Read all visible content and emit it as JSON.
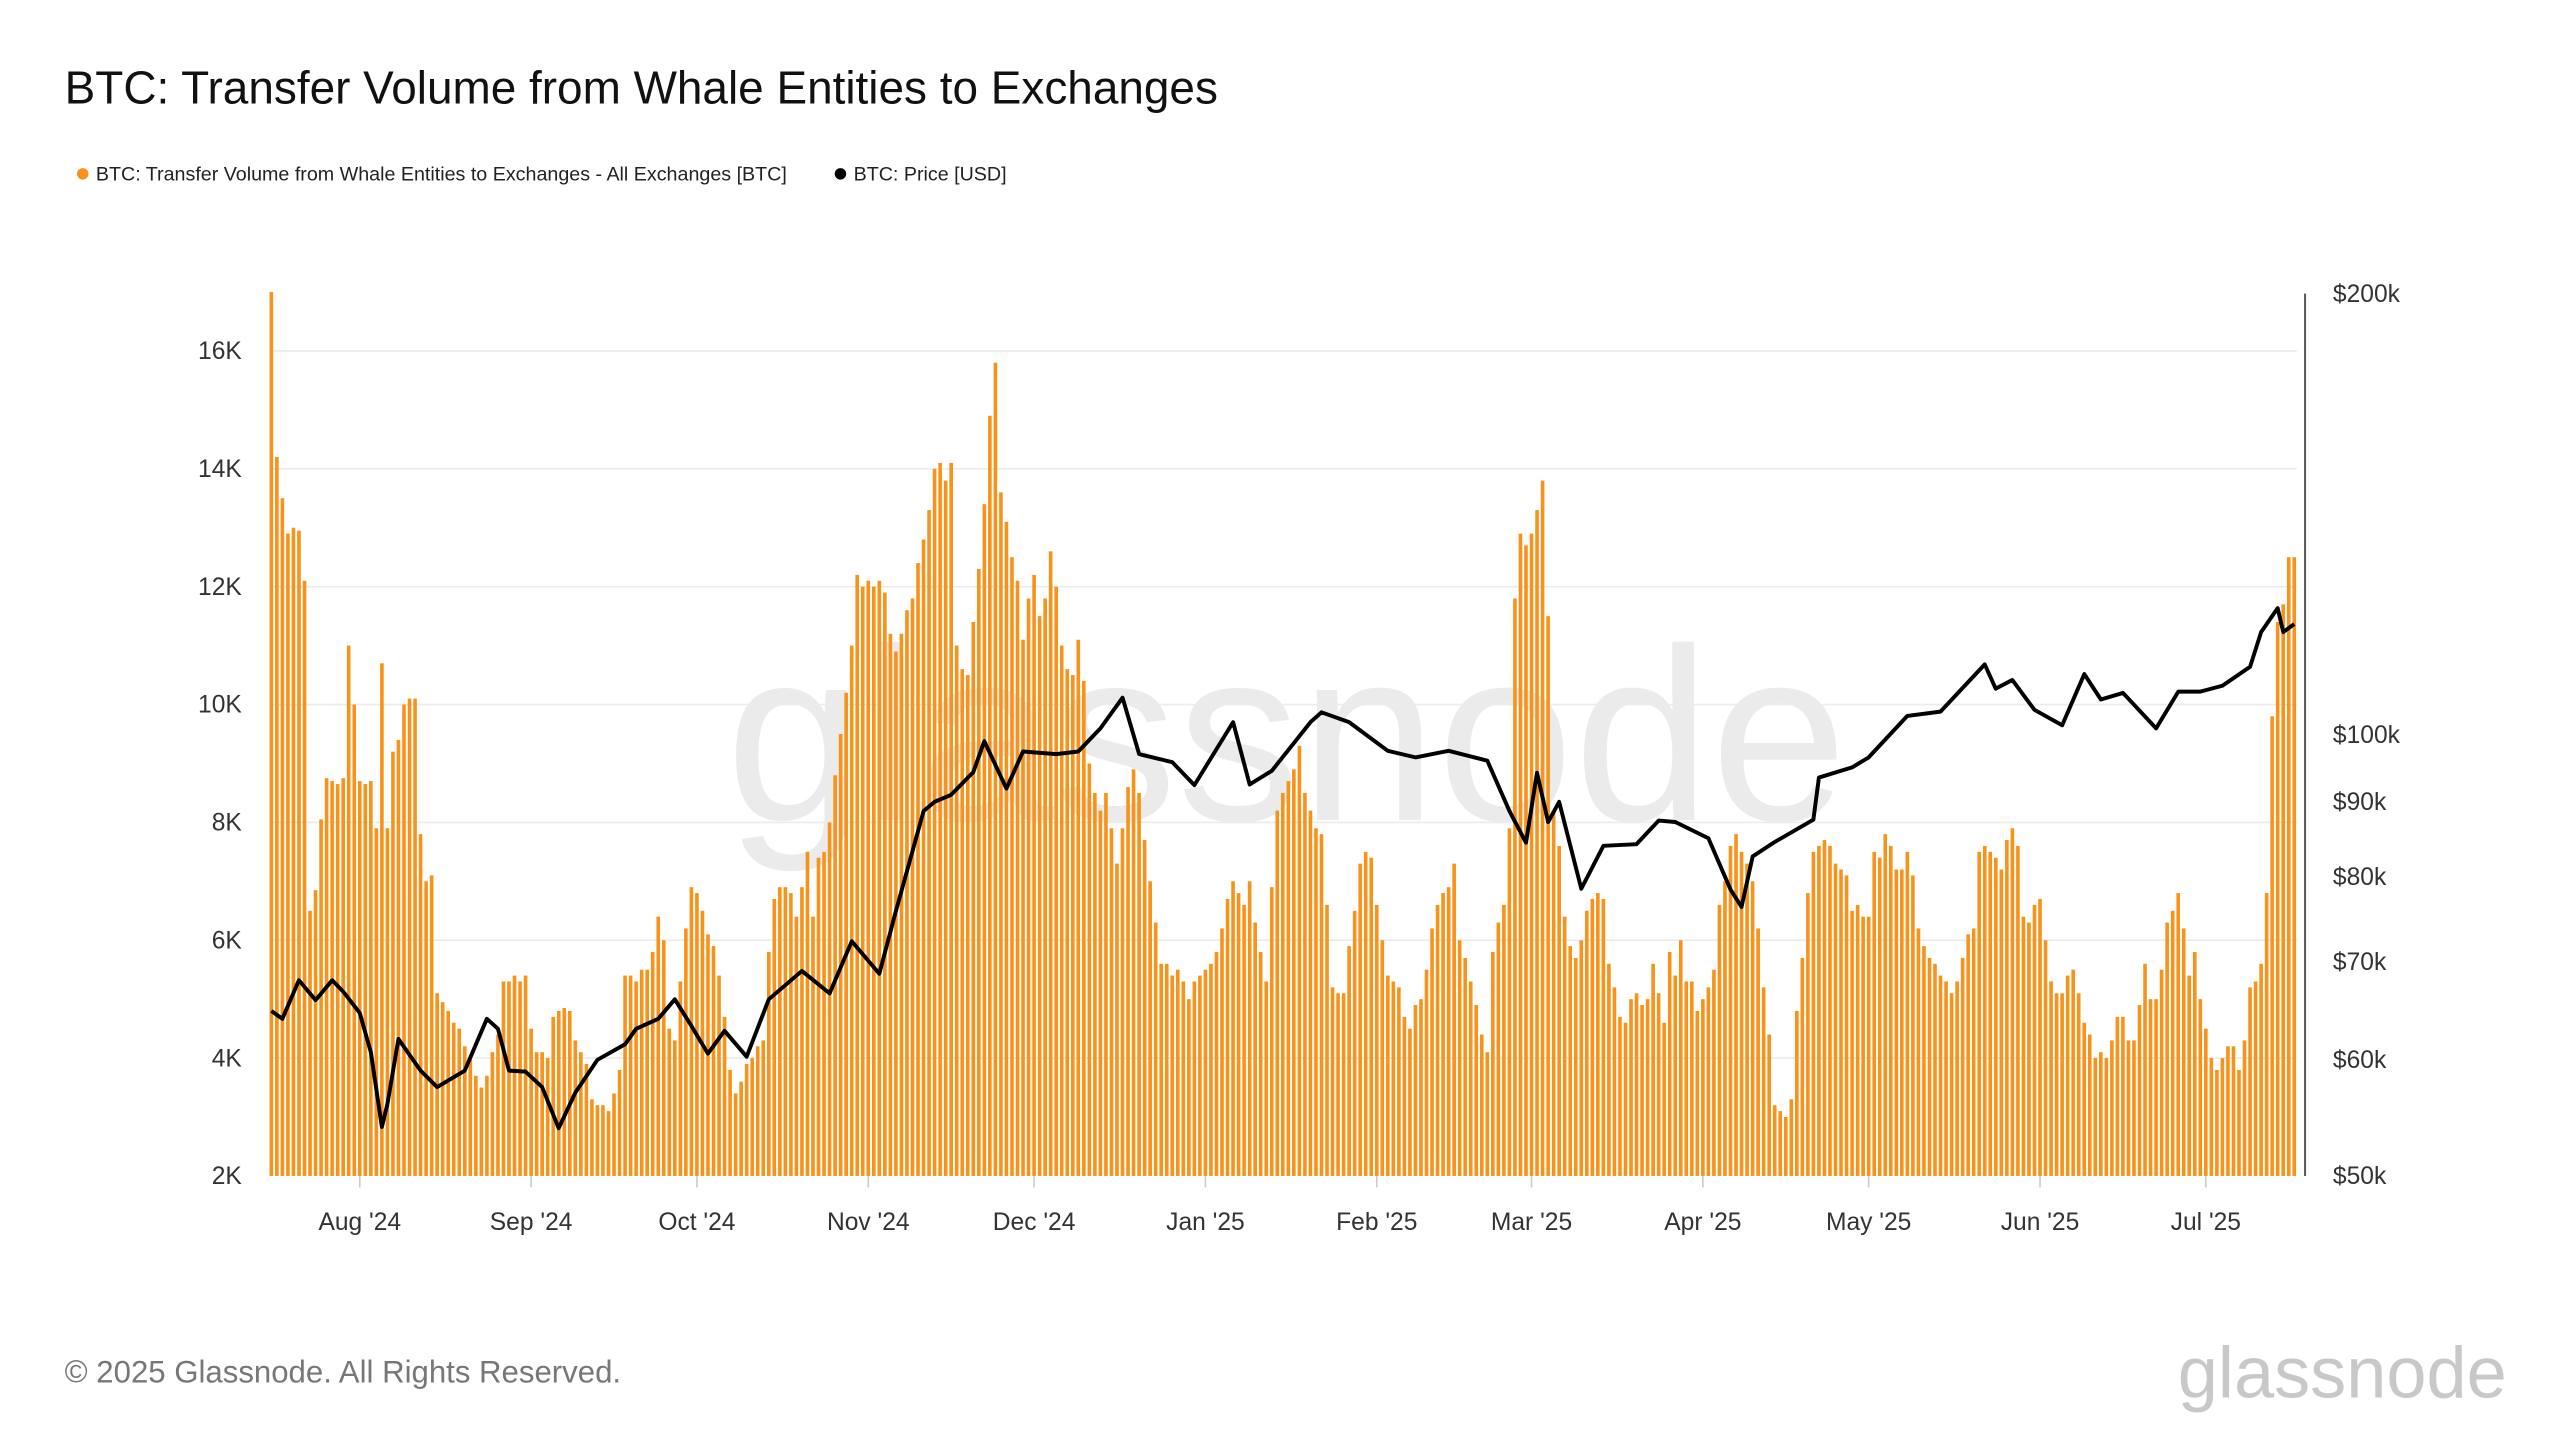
{
  "title": "BTC: Transfer Volume from Whale Entities to Exchanges",
  "legend": [
    {
      "label": "BTC: Transfer Volume from Whale Entities to Exchanges - All Exchanges [BTC]",
      "color": "#f7931a"
    },
    {
      "label": "BTC: Price [USD]",
      "color": "#000000"
    }
  ],
  "footer": {
    "copyright": "© 2025 Glassnode. All Rights Reserved.",
    "logo": "glassnode",
    "watermark": "glassnode"
  },
  "chart_data": {
    "type": "bar+line",
    "title": "BTC: Transfer Volume from Whale Entities to Exchanges",
    "left_axis": {
      "ticks": [
        "2K",
        "4K",
        "6K",
        "8K",
        "10K",
        "12K",
        "14K",
        "16K"
      ],
      "tick_values": [
        2000,
        4000,
        6000,
        8000,
        10000,
        12000,
        14000,
        16000
      ],
      "range": [
        2000,
        17000
      ],
      "scale": "linear"
    },
    "right_axis": {
      "ticks": [
        "$50k",
        "$60k",
        "$70k",
        "$80k",
        "$90k",
        "$100k",
        "$200k"
      ],
      "tick_values": [
        50000,
        60000,
        70000,
        80000,
        90000,
        100000,
        200000
      ],
      "range": [
        50000,
        200000
      ],
      "scale": "log"
    },
    "x_axis": {
      "ticks": [
        "Aug '24",
        "Sep '24",
        "Oct '24",
        "Nov '24",
        "Dec '24",
        "Jan '25",
        "Feb '25",
        "Mar '25",
        "Apr '25",
        "May '25",
        "Jun '25",
        "Jul '25"
      ],
      "tick_dates": [
        "2024-08-01",
        "2024-09-01",
        "2024-10-01",
        "2024-11-01",
        "2024-12-01",
        "2025-01-01",
        "2025-02-01",
        "2025-03-01",
        "2025-04-01",
        "2025-05-01",
        "2025-06-01",
        "2025-07-01"
      ]
    },
    "grid": true,
    "legend_position": "top-left",
    "series": [
      {
        "name": "BTC: Transfer Volume from Whale Entities to Exchanges - All Exchanges [BTC]",
        "type": "bar",
        "axis": "left",
        "color": "#f7931a",
        "daily_by_month": [
          {
            "month": "2024-07",
            "first_day": 16,
            "values": [
              17000,
              14200,
              13500,
              12900,
              13000,
              12950,
              12100,
              6500,
              6850,
              8050,
              8750,
              8700,
              8650,
              8750,
              11000,
              10000
            ]
          },
          {
            "month": "2024-08",
            "first_day": 1,
            "values": [
              8700,
              8650,
              8700,
              7900,
              10700,
              7900,
              9200,
              9400,
              10000,
              10100,
              10100,
              7800,
              7000,
              7100,
              5100,
              4950,
              4800,
              4600,
              4500,
              4200,
              4000,
              3700,
              3500,
              3700,
              4100,
              4400,
              5300,
              5300,
              5400,
              5300,
              5400
            ]
          },
          {
            "month": "2024-09",
            "first_day": 1,
            "values": [
              4500,
              4100,
              4100,
              4000,
              4700,
              4800,
              4850,
              4800,
              4300,
              4100,
              3900,
              3300,
              3200,
              3200,
              3100,
              3400,
              3800,
              5400,
              5400,
              5300,
              5500,
              5500,
              5800,
              6400,
              6000,
              4500,
              4300,
              5300,
              6200,
              6900
            ]
          },
          {
            "month": "2024-10",
            "first_day": 1,
            "values": [
              6800,
              6500,
              6100,
              5900,
              5400,
              4700,
              3800,
              3400,
              3600,
              3900,
              4000,
              4200,
              4300,
              5800,
              6700,
              6900,
              6900,
              6800,
              6400,
              6900,
              7500,
              6400,
              7400,
              7500,
              8000,
              8800,
              9500,
              10200,
              11000,
              12200,
              12000
            ]
          },
          {
            "month": "2024-11",
            "first_day": 1,
            "values": [
              12100,
              12000,
              12100,
              11900,
              11200,
              10900,
              11200,
              11600,
              11800,
              12400,
              12800,
              13300,
              14000,
              14100,
              13800,
              14100,
              11000,
              10600,
              10500,
              11400,
              12300,
              13400,
              14900,
              15800,
              13600,
              13100,
              12500,
              12100,
              11100,
              11800
            ]
          },
          {
            "month": "2024-12",
            "first_day": 1,
            "values": [
              12200,
              11500,
              11800,
              12600,
              12000,
              11000,
              10600,
              10500,
              11100,
              10400,
              9000,
              8500,
              8200,
              8500,
              7900,
              7300,
              7900,
              8600,
              8900,
              8500,
              7700,
              7000,
              6300,
              5600,
              5600,
              5400,
              5500,
              5300,
              5000,
              5300,
              5400
            ]
          },
          {
            "month": "2025-01",
            "first_day": 1,
            "values": [
              5500,
              5600,
              5800,
              6200,
              6700,
              7000,
              6800,
              6600,
              7000,
              6300,
              5800,
              5300,
              6900,
              8200,
              8500,
              8700,
              8900,
              9300,
              8500,
              8200,
              7900,
              7800,
              6600,
              5200,
              5100,
              5100,
              5900,
              6500,
              7300,
              7500,
              7400
            ]
          },
          {
            "month": "2025-02",
            "first_day": 1,
            "values": [
              6600,
              6000,
              5400,
              5300,
              5200,
              4700,
              4500,
              4900,
              5000,
              5500,
              6200,
              6600,
              6800,
              6900,
              7300,
              6000,
              5700,
              5300,
              4900,
              4400,
              4100,
              5800,
              6300,
              6600,
              7900,
              11800,
              12900,
              12700
            ]
          },
          {
            "month": "2025-03",
            "first_day": 1,
            "values": [
              12900,
              13300,
              13800,
              11500,
              8200,
              7600,
              6400,
              5900,
              5700,
              6000,
              6500,
              6700,
              6800,
              6700,
              5600,
              5200,
              4700,
              4600,
              5000,
              5100,
              4900,
              5000,
              5600,
              5100,
              4600,
              5800,
              5400,
              6000,
              5300,
              5300,
              4800
            ]
          },
          {
            "month": "2025-04",
            "first_day": 1,
            "values": [
              5000,
              5200,
              5500,
              6600,
              7000,
              7600,
              7800,
              7500,
              7300,
              7000,
              6200,
              5200,
              4400,
              3200,
              3100,
              3000,
              3300,
              4800,
              5700,
              6800,
              7500,
              7600,
              7700,
              7600,
              7300,
              7200,
              7100,
              6500,
              6600,
              6400
            ]
          },
          {
            "month": "2025-05",
            "first_day": 1,
            "values": [
              6400,
              7500,
              7400,
              7800,
              7600,
              7200,
              7200,
              7500,
              7100,
              6200,
              5900,
              5700,
              5600,
              5400,
              5300,
              5100,
              5300,
              5700,
              6100,
              6200,
              7500,
              7600,
              7500,
              7400,
              7200,
              7700,
              7900,
              7600,
              6400,
              6300,
              6600
            ]
          },
          {
            "month": "2025-06",
            "first_day": 1,
            "values": [
              6700,
              6000,
              5300,
              5100,
              5100,
              5400,
              5500,
              5100,
              4600,
              4400,
              4000,
              4100,
              4000,
              4300,
              4700,
              4700,
              4300,
              4300,
              4900,
              5600,
              5000,
              5000,
              5500,
              6300,
              6500,
              6800,
              6200,
              5400,
              5800,
              5000
            ]
          },
          {
            "month": "2025-07",
            "first_day": 1,
            "values": [
              4500,
              4000,
              3800,
              4000,
              4200,
              4200,
              3800,
              4300,
              5200,
              5300,
              5600,
              6800,
              9800,
              11400,
              11700,
              12500,
              12500
            ]
          }
        ]
      },
      {
        "name": "BTC: Price [USD]",
        "type": "line",
        "axis": "right",
        "color": "#000000",
        "points": [
          [
            "2024-07-16",
            64800
          ],
          [
            "2024-07-18",
            64000
          ],
          [
            "2024-07-21",
            68000
          ],
          [
            "2024-07-24",
            65900
          ],
          [
            "2024-07-27",
            68000
          ],
          [
            "2024-07-29",
            66800
          ],
          [
            "2024-08-01",
            64600
          ],
          [
            "2024-08-03",
            60700
          ],
          [
            "2024-08-05",
            54000
          ],
          [
            "2024-08-06",
            56000
          ],
          [
            "2024-08-08",
            62000
          ],
          [
            "2024-08-12",
            59000
          ],
          [
            "2024-08-15",
            57500
          ],
          [
            "2024-08-20",
            59000
          ],
          [
            "2024-08-24",
            64000
          ],
          [
            "2024-08-26",
            63000
          ],
          [
            "2024-08-28",
            59000
          ],
          [
            "2024-08-31",
            58900
          ],
          [
            "2024-09-03",
            57500
          ],
          [
            "2024-09-06",
            53900
          ],
          [
            "2024-09-09",
            57000
          ],
          [
            "2024-09-13",
            60000
          ],
          [
            "2024-09-18",
            61500
          ],
          [
            "2024-09-20",
            63000
          ],
          [
            "2024-09-24",
            64000
          ],
          [
            "2024-09-27",
            66000
          ],
          [
            "2024-09-30",
            63300
          ],
          [
            "2024-10-03",
            60600
          ],
          [
            "2024-10-06",
            62800
          ],
          [
            "2024-10-10",
            60300
          ],
          [
            "2024-10-14",
            66000
          ],
          [
            "2024-10-20",
            69000
          ],
          [
            "2024-10-25",
            66600
          ],
          [
            "2024-10-29",
            72300
          ],
          [
            "2024-11-03",
            68700
          ],
          [
            "2024-11-06",
            75800
          ],
          [
            "2024-11-11",
            88700
          ],
          [
            "2024-11-13",
            90000
          ],
          [
            "2024-11-16",
            91000
          ],
          [
            "2024-11-20",
            94300
          ],
          [
            "2024-11-22",
            99000
          ],
          [
            "2024-11-26",
            91900
          ],
          [
            "2024-11-29",
            97400
          ],
          [
            "2024-12-05",
            97000
          ],
          [
            "2024-12-09",
            97400
          ],
          [
            "2024-12-13",
            101000
          ],
          [
            "2024-12-17",
            106000
          ],
          [
            "2024-12-20",
            97000
          ],
          [
            "2024-12-26",
            95800
          ],
          [
            "2024-12-30",
            92400
          ],
          [
            "2025-01-06",
            102000
          ],
          [
            "2025-01-09",
            92500
          ],
          [
            "2025-01-13",
            94500
          ],
          [
            "2025-01-20",
            102000
          ],
          [
            "2025-01-22",
            103600
          ],
          [
            "2025-01-27",
            102000
          ],
          [
            "2025-02-03",
            97500
          ],
          [
            "2025-02-08",
            96500
          ],
          [
            "2025-02-14",
            97500
          ],
          [
            "2025-02-21",
            96000
          ],
          [
            "2025-02-25",
            88700
          ],
          [
            "2025-02-28",
            84400
          ],
          [
            "2025-03-02",
            94200
          ],
          [
            "2025-03-04",
            87200
          ],
          [
            "2025-03-06",
            90000
          ],
          [
            "2025-03-10",
            78500
          ],
          [
            "2025-03-14",
            84000
          ],
          [
            "2025-03-20",
            84200
          ],
          [
            "2025-03-24",
            87400
          ],
          [
            "2025-03-27",
            87200
          ],
          [
            "2025-04-02",
            85000
          ],
          [
            "2025-04-06",
            78400
          ],
          [
            "2025-04-08",
            76300
          ],
          [
            "2025-04-10",
            82600
          ],
          [
            "2025-04-14",
            84500
          ],
          [
            "2025-04-21",
            87500
          ],
          [
            "2025-04-22",
            93500
          ],
          [
            "2025-04-28",
            95000
          ],
          [
            "2025-05-01",
            96500
          ],
          [
            "2025-05-08",
            103000
          ],
          [
            "2025-05-14",
            103700
          ],
          [
            "2025-05-22",
            111700
          ],
          [
            "2025-05-24",
            107500
          ],
          [
            "2025-05-27",
            109000
          ],
          [
            "2025-05-31",
            104000
          ],
          [
            "2025-06-05",
            101500
          ],
          [
            "2025-06-09",
            110000
          ],
          [
            "2025-06-12",
            105700
          ],
          [
            "2025-06-16",
            106800
          ],
          [
            "2025-06-22",
            101000
          ],
          [
            "2025-06-26",
            107000
          ],
          [
            "2025-06-30",
            107000
          ],
          [
            "2025-07-04",
            108000
          ],
          [
            "2025-07-09",
            111300
          ],
          [
            "2025-07-11",
            117500
          ],
          [
            "2025-07-14",
            122000
          ],
          [
            "2025-07-15",
            117500
          ],
          [
            "2025-07-17",
            119000
          ]
        ]
      }
    ]
  }
}
